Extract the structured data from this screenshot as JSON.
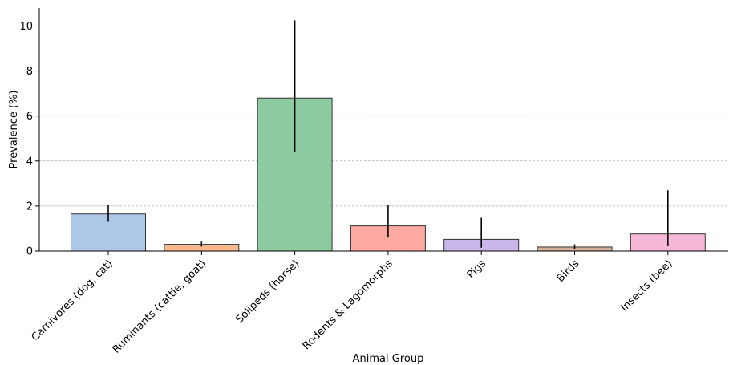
{
  "chart_data": {
    "type": "bar",
    "title": "",
    "xlabel": "Animal Group",
    "ylabel": "Prevalence (%)",
    "ylim": [
      0,
      10.8
    ],
    "yticks": [
      0,
      2,
      4,
      6,
      8,
      10
    ],
    "grid": "y-dashed",
    "categories": [
      "Carnivores (dog, cat)",
      "Ruminants (cattle, goat)",
      "Solipeds (horse)",
      "Rodents & Lagomorphs",
      "Pigs",
      "Birds",
      "Insects (bee)"
    ],
    "values": [
      1.65,
      0.3,
      6.8,
      1.12,
      0.52,
      0.18,
      0.76
    ],
    "error_low": [
      1.3,
      0.2,
      4.4,
      0.6,
      0.15,
      0.08,
      0.22
    ],
    "error_high": [
      2.05,
      0.42,
      10.25,
      2.05,
      1.48,
      0.3,
      2.7
    ],
    "colors": [
      "#aec7e8",
      "#f7b98d",
      "#8ccba0",
      "#fcaaa2",
      "#c9b7ea",
      "#d4b09b",
      "#f6b6d6"
    ]
  }
}
